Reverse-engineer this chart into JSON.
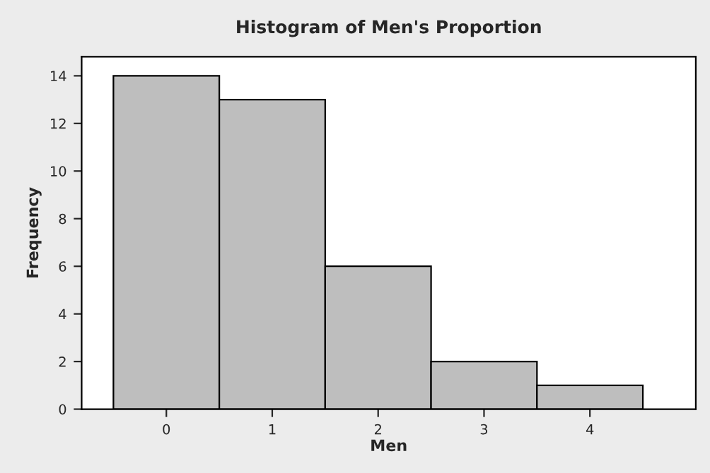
{
  "chart_data": {
    "type": "histogram",
    "title": "Histogram of Men's Proportion",
    "xlabel": "Men",
    "ylabel": "Frequency",
    "bins": [
      -0.5,
      0.5,
      1.5,
      2.5,
      3.5,
      4.5
    ],
    "values": [
      14,
      13,
      6,
      2,
      1
    ],
    "color": "#bebebe",
    "xlim": [
      -0.8,
      5.0
    ],
    "xticks": [
      0,
      1,
      2,
      3,
      4
    ],
    "ylim": [
      0,
      14.8
    ],
    "yticks": [
      0,
      2,
      4,
      6,
      8,
      10,
      12,
      14
    ],
    "grid": false
  }
}
